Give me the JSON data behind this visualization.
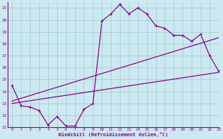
{
  "title": "Windchill (Refroidissement éolien,°C)",
  "background_color": "#cce8f0",
  "line_color": "#880088",
  "grid_color": "#99cccc",
  "xlim": [
    -0.5,
    23
  ],
  "ylim": [
    11,
    21.5
  ],
  "yticks": [
    11,
    12,
    13,
    14,
    15,
    16,
    17,
    18,
    19,
    20,
    21
  ],
  "xticks": [
    0,
    1,
    2,
    3,
    4,
    5,
    6,
    7,
    8,
    9,
    10,
    11,
    12,
    13,
    14,
    15,
    16,
    17,
    18,
    19,
    20,
    21,
    22,
    23
  ],
  "line1_x": [
    0,
    1,
    2,
    3,
    4,
    5,
    6,
    7,
    8,
    9,
    10,
    11,
    12,
    13,
    14,
    15,
    16,
    17,
    18,
    19,
    20,
    21,
    22,
    23
  ],
  "line1_y": [
    14.5,
    12.8,
    12.7,
    12.4,
    11.2,
    11.9,
    11.1,
    11.1,
    12.5,
    13.0,
    19.9,
    20.5,
    21.3,
    20.5,
    21.0,
    20.5,
    19.5,
    19.3,
    18.7,
    18.7,
    18.2,
    18.8,
    17.0,
    15.7
  ],
  "line2_x": [
    0,
    23
  ],
  "line2_y": [
    13.0,
    15.6
  ],
  "line3_x": [
    0,
    23
  ],
  "line3_y": [
    13.2,
    18.5
  ],
  "marker": "+"
}
